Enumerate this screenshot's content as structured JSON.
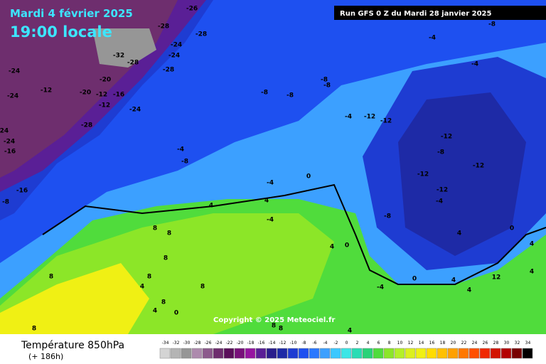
{
  "header": {
    "date": "Mardi 4 février 2025",
    "time": "19:00 locale",
    "run": "Run GFS 0 Z du Mardi 28 janvier 2025"
  },
  "copyright": "Copyright © 2025 Meteociel.fr",
  "legend": {
    "title": "Température 850hPa",
    "lead": "(+ 186h)",
    "scale": [
      -34,
      -32,
      -30,
      -28,
      -26,
      -24,
      -22,
      -20,
      -18,
      -16,
      -14,
      -12,
      -10,
      -8,
      -6,
      -4,
      -2,
      0,
      2,
      4,
      6,
      8,
      10,
      12,
      14,
      16,
      18,
      20,
      22,
      24,
      26,
      28,
      30,
      32,
      34
    ],
    "colors": [
      "#d4d4d4",
      "#b4b4b4",
      "#969696",
      "#ad8aad",
      "#8c5a8c",
      "#6e2e6e",
      "#5a0f5a",
      "#78107a",
      "#9614a0",
      "#5a1f96",
      "#2a1e8c",
      "#1e2aa6",
      "#1e3cd2",
      "#1e50f0",
      "#2a78ff",
      "#3ca0ff",
      "#3cc8ff",
      "#3ce6e6",
      "#28dcb4",
      "#28d278",
      "#50dc3c",
      "#8ce628",
      "#b4f028",
      "#dcf01e",
      "#f0f014",
      "#ffdc00",
      "#ffc000",
      "#ffa000",
      "#ff7800",
      "#ff5000",
      "#f02800",
      "#d21400",
      "#b40000",
      "#780000",
      "#000000"
    ]
  },
  "map": {
    "labels": [
      -26,
      -28,
      -28,
      -24,
      -24,
      -32,
      -28,
      -24,
      -20,
      -28,
      -24,
      -12,
      -20,
      -12,
      -16,
      -12,
      -24,
      -28,
      -24,
      -24,
      -16,
      -16,
      -8,
      -8,
      -8,
      -8,
      -8,
      -8,
      -4,
      -4,
      -4,
      -12,
      -12,
      -12,
      -8,
      -4,
      -8,
      -12,
      -12,
      -12,
      -4,
      -4,
      0,
      4,
      4,
      -4,
      -8,
      4,
      8,
      8,
      8,
      8,
      8,
      4,
      8,
      8,
      4,
      0,
      4,
      0,
      -4,
      0,
      4,
      4,
      4,
      4,
      0,
      12,
      8,
      8,
      8,
      4
    ]
  }
}
